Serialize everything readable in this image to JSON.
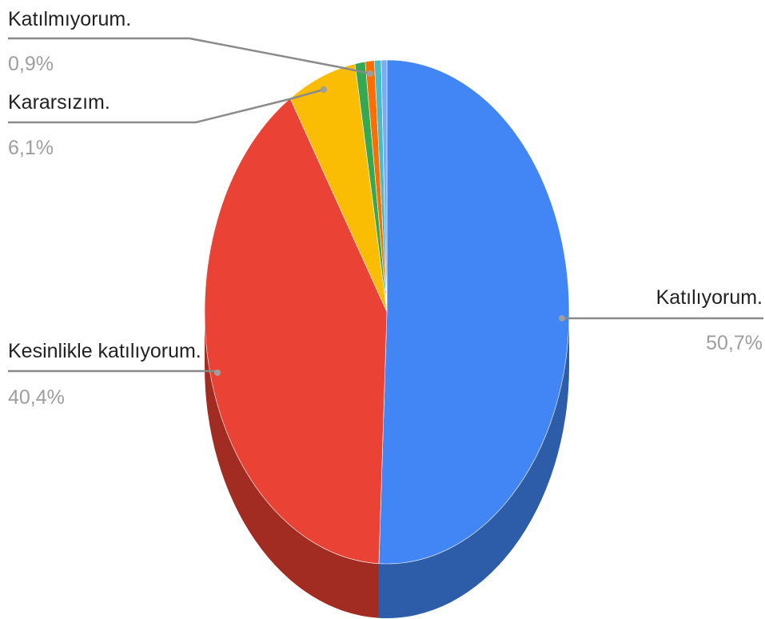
{
  "chart_data": {
    "type": "pie",
    "title": "",
    "slices": [
      {
        "label": "Katılıyorum.",
        "value": 50.7,
        "display": "50,7%",
        "color": "#4285f4",
        "side_color": "#2d5ca8",
        "labeled": true
      },
      {
        "label": "Kesinlikle katılıyorum.",
        "value": 40.4,
        "display": "40,4%",
        "color": "#ea4335",
        "side_color": "#a22b22",
        "labeled": true
      },
      {
        "label": "Kararsızım.",
        "value": 6.1,
        "display": "6,1%",
        "color": "#fbbc04",
        "side_color": "#b08403",
        "labeled": true
      },
      {
        "label": "Katılmıyorum.",
        "value": 0.9,
        "display": "0,9%",
        "color": "#34a853",
        "side_color": "#24753a",
        "labeled": true
      },
      {
        "label": "",
        "value": 0.8,
        "display": "",
        "color": "#ff6d01",
        "side_color": "#b34c01",
        "labeled": false
      },
      {
        "label": "",
        "value": 0.6,
        "display": "",
        "color": "#46bdc6",
        "side_color": "#31848b",
        "labeled": false
      },
      {
        "label": "",
        "value": 0.5,
        "display": "",
        "color": "#7baaf7",
        "side_color": "#5677ad",
        "labeled": false
      }
    ],
    "legend": "none",
    "style": "3d-pie"
  }
}
